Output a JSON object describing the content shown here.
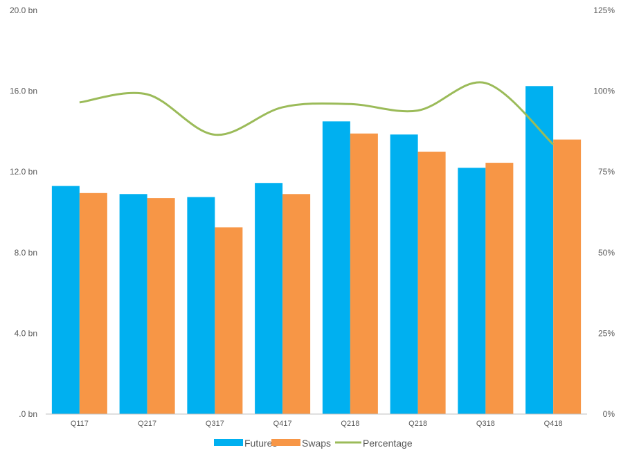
{
  "chart_data": {
    "type": "bar",
    "categories": [
      "Q117",
      "Q217",
      "Q317",
      "Q417",
      "Q218",
      "Q218",
      "Q318",
      "Q418"
    ],
    "series": [
      {
        "name": "Futures",
        "type": "bar",
        "axis": "left",
        "color": "#00B0F0",
        "values": [
          11.3,
          10.9,
          10.75,
          11.45,
          14.5,
          13.85,
          12.2,
          16.25
        ]
      },
      {
        "name": "Swaps",
        "type": "bar",
        "axis": "left",
        "color": "#F79646",
        "values": [
          10.95,
          10.7,
          9.25,
          10.9,
          13.9,
          13.0,
          12.45,
          13.6
        ]
      },
      {
        "name": "Percentage",
        "type": "line",
        "axis": "right",
        "color": "#9BBB59",
        "values": [
          96.5,
          99,
          86.5,
          95,
          96,
          94,
          102.5,
          83.5
        ]
      }
    ],
    "y_left": {
      "ylim": [
        0,
        20
      ],
      "ticks": [
        0,
        4,
        8,
        12,
        16,
        20
      ],
      "tick_labels": [
        ".0 bn",
        "4.0 bn",
        "8.0 bn",
        "12.0 bn",
        "16.0 bn",
        "20.0 bn"
      ]
    },
    "y_right": {
      "ylim": [
        0,
        125
      ],
      "ticks": [
        0,
        25,
        50,
        75,
        100,
        125
      ],
      "tick_labels": [
        "0%",
        "25%",
        "50%",
        "75%",
        "100%",
        "125%"
      ]
    },
    "grid": false,
    "legend": {
      "position": "bottom",
      "entries": [
        "Futures",
        "Swaps",
        "Percentage"
      ]
    }
  }
}
